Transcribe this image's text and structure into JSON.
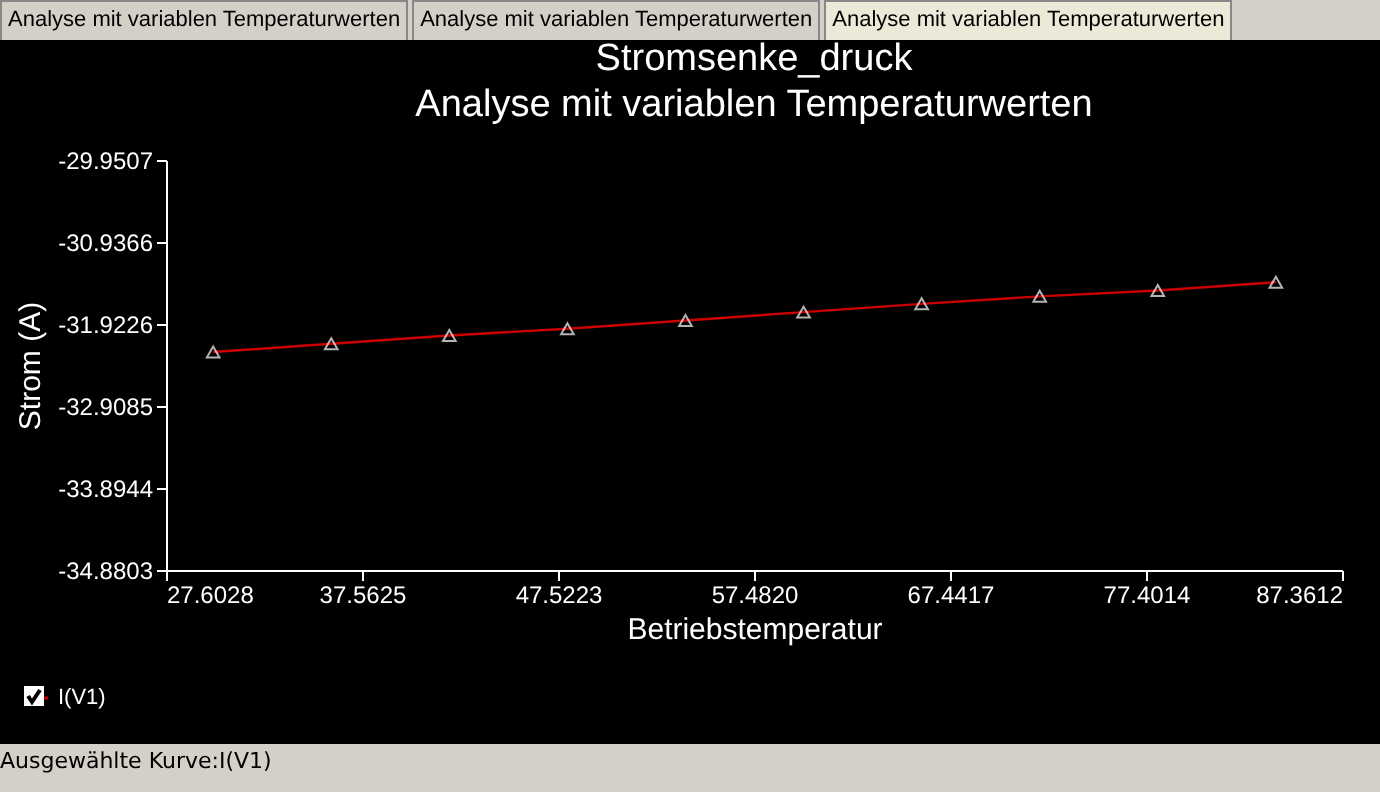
{
  "chart_data": {
    "type": "line",
    "title": "Stromsenke_druck",
    "subtitle": "Analyse mit variablen Temperaturwerten",
    "xlabel": "Betriebstemperatur",
    "ylabel": "Strom (A)",
    "x": [
      30,
      36,
      42,
      48,
      54,
      60,
      66,
      72,
      78,
      84
    ],
    "series": [
      {
        "name": "I(V1)",
        "color": "#cc0000",
        "values": [
          -32.26,
          -32.16,
          -32.06,
          -31.98,
          -31.88,
          -31.78,
          -31.68,
          -31.59,
          -31.52,
          -31.42
        ]
      }
    ],
    "xlim": [
      27.6028,
      87.3612
    ],
    "xticks": [
      27.6028,
      37.5625,
      47.5223,
      {
        "value": 57.482,
        "label": "57.4820"
      },
      67.4417,
      77.4014,
      87.3612
    ],
    "ylim": [
      -34.8803,
      -29.9507
    ],
    "yticks": [
      -34.8803,
      -33.8944,
      -32.9085,
      -31.9226,
      -30.9366,
      -29.9507
    ],
    "marker": "triangle",
    "grid": false,
    "legend": "bottom left",
    "annotations": [
      "Analyse mit variablen Temperaturwerten",
      "Analyse mit variablen Temperaturwerten",
      "Analyse mit variablen Temperaturwerten",
      "Ausgewählte Kurve:I(V1)"
    ]
  }
}
